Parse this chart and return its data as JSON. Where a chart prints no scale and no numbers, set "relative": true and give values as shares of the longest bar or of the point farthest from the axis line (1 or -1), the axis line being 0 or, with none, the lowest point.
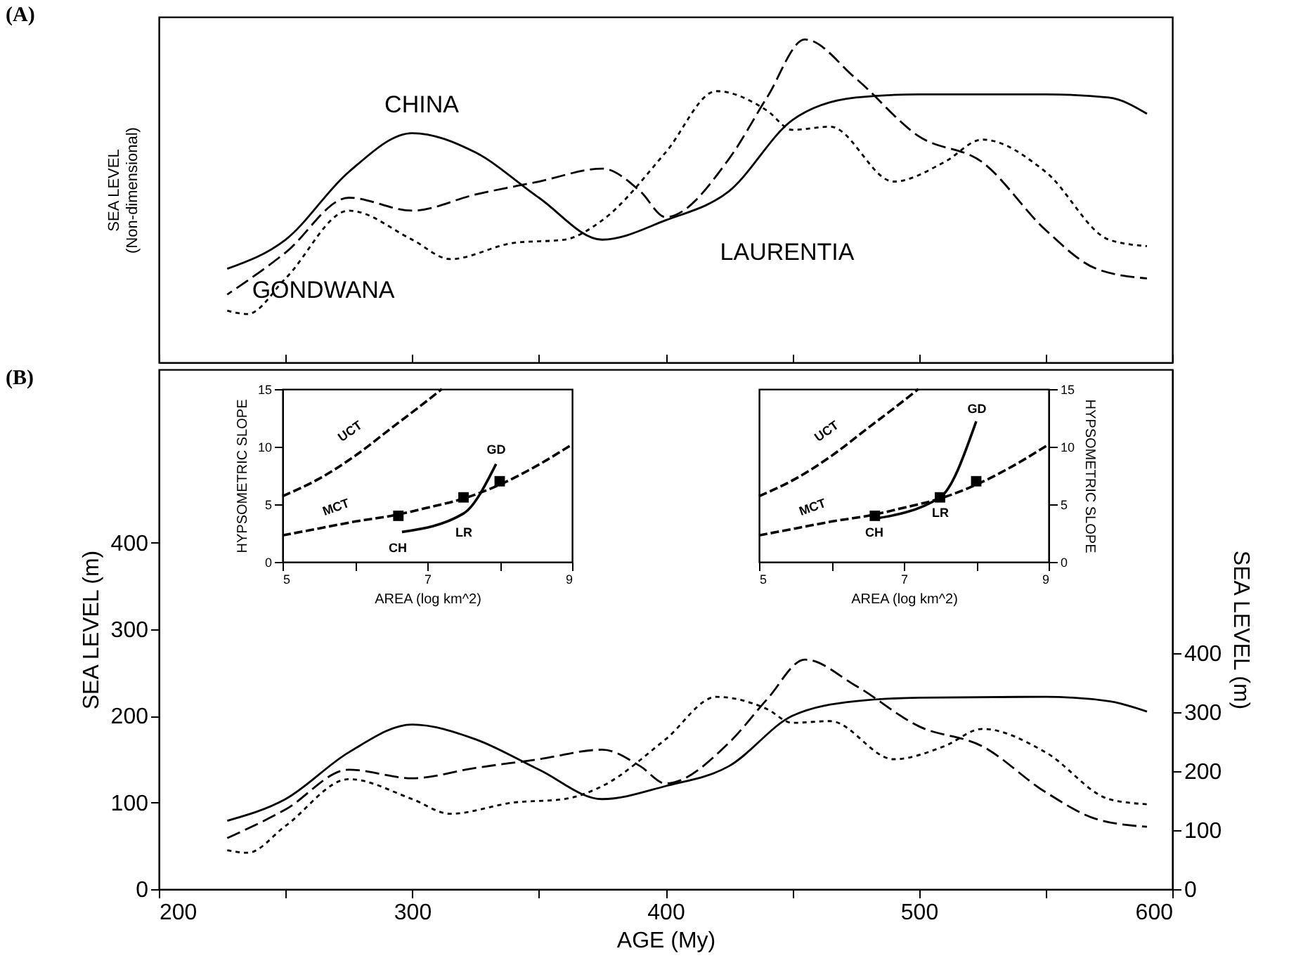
{
  "chart_data": [
    {
      "type": "line",
      "title": "(A)",
      "ylabel": "SEA LEVEL\n(Non-dimensional)",
      "relative": true,
      "xlim": [
        200,
        600
      ],
      "xticks": [
        200,
        {
          "value": 250,
          "label": null
        },
        300,
        {
          "value": 350,
          "label": null
        },
        400,
        {
          "value": 450,
          "label": null
        },
        500,
        {
          "value": 550,
          "label": null
        },
        600
      ],
      "tick_labels": false,
      "series": [
        {
          "color": "#000000",
          "line_style": "solid",
          "x": [
            227,
            250,
            275,
            300,
            325,
            350,
            375,
            400,
            425,
            450,
            475,
            500,
            550,
            575,
            590
          ],
          "values": [
            0.29,
            0.38,
            0.59,
            0.71,
            0.65,
            0.51,
            0.38,
            0.44,
            0.53,
            0.75,
            0.82,
            0.83,
            0.83,
            0.82,
            0.77
          ]
        },
        {
          "color": "#000000",
          "line_style": "dashed",
          "x": [
            227,
            250,
            275,
            300,
            325,
            350,
            375,
            390,
            400,
            425,
            440,
            455,
            475,
            500,
            525,
            550,
            570,
            590
          ],
          "values": [
            0.21,
            0.34,
            0.51,
            0.47,
            0.52,
            0.56,
            0.6,
            0.53,
            0.45,
            0.63,
            0.82,
            1,
            0.88,
            0.7,
            0.62,
            0.41,
            0.29,
            0.26
          ]
        },
        {
          "color": "#000000",
          "line_style": "dotted",
          "x": [
            227,
            235,
            250,
            275,
            300,
            315,
            340,
            360,
            375,
            400,
            420,
            440,
            450,
            465,
            490,
            510,
            525,
            550,
            575,
            590
          ],
          "values": [
            0.16,
            0.15,
            0.26,
            0.47,
            0.38,
            0.32,
            0.37,
            0.38,
            0.44,
            0.65,
            0.84,
            0.78,
            0.72,
            0.73,
            0.56,
            0.62,
            0.69,
            0.59,
            0.38,
            0.36
          ]
        }
      ],
      "annotations": [
        "CHINA",
        "GONDWANA",
        "LAURENTIA"
      ]
    },
    {
      "type": "line",
      "title": "(B)",
      "xlabel": "AGE (My)",
      "ylabel": "SEA LEVEL  (m)",
      "y2label": "SEA LEVEL (m)",
      "xlim": [
        200,
        600
      ],
      "xticks": [
        200,
        {
          "value": 250,
          "label": null
        },
        300,
        {
          "value": 350,
          "label": null
        },
        400,
        {
          "value": 450,
          "label": null
        },
        500,
        {
          "value": 550,
          "label": null
        },
        600
      ],
      "ylim": [
        0,
        600
      ],
      "yticks": [
        0,
        100,
        200,
        300,
        400
      ],
      "y2lim": [
        0,
        880
      ],
      "y2ticks": [
        0,
        100,
        200,
        300,
        400
      ],
      "series": [
        {
          "color": "#000000",
          "line_style": "solid",
          "x": [
            227,
            250,
            275,
            300,
            325,
            350,
            375,
            400,
            425,
            450,
            475,
            500,
            550,
            575,
            590
          ],
          "values": [
            79,
            104,
            158,
            190,
            173,
            138,
            104,
            119,
            142,
            200,
            217,
            221,
            222,
            217,
            205
          ]
        },
        {
          "color": "#000000",
          "line_style": "dashed",
          "x": [
            227,
            250,
            275,
            300,
            325,
            350,
            375,
            390,
            400,
            425,
            440,
            455,
            475,
            500,
            525,
            550,
            570,
            590
          ],
          "values": [
            59,
            92,
            138,
            128,
            140,
            150,
            161,
            142,
            122,
            169,
            219,
            265,
            235,
            188,
            165,
            112,
            81,
            72
          ]
        },
        {
          "color": "#000000",
          "line_style": "dotted",
          "x": [
            227,
            235,
            250,
            275,
            300,
            315,
            340,
            360,
            375,
            400,
            420,
            440,
            450,
            465,
            490,
            510,
            525,
            550,
            575,
            590
          ],
          "values": [
            45,
            42,
            73,
            127,
            104,
            87,
            100,
            104,
            119,
            173,
            222,
            208,
            192,
            194,
            150,
            165,
            185,
            158,
            104,
            98
          ]
        }
      ]
    },
    {
      "type": "line",
      "xlabel": "AREA  (log km^2)",
      "ylabel": "HYPSOMETRIC SLOPE",
      "xlim": [
        5,
        9
      ],
      "xticks": [
        5,
        {
          "value": 6,
          "label": null
        },
        7,
        {
          "value": 8,
          "label": null
        },
        9
      ],
      "ylim": [
        0,
        15
      ],
      "yticks": [
        0,
        5,
        10,
        15
      ],
      "series": [
        {
          "color": "#000000",
          "line_style": "dashed",
          "x": [
            5,
            5.5,
            6,
            6.5,
            7,
            7.2
          ],
          "values": [
            5.7,
            7.2,
            9.2,
            11.6,
            14.0,
            15
          ]
        },
        {
          "color": "#000000",
          "line_style": "dashed",
          "x": [
            5,
            5.5,
            6,
            6.5,
            7,
            7.5,
            8,
            8.5,
            9
          ],
          "values": [
            2.3,
            2.9,
            3.5,
            4.0,
            4.7,
            5.5,
            6.7,
            8.3,
            10.2
          ]
        },
        {
          "color": "#000000",
          "line_style": "solid",
          "x": [
            6.65,
            7.5,
            7.95
          ],
          "values": [
            2.6,
            4.2,
            8.5
          ]
        },
        {
          "type": "scatter",
          "color": "#000000",
          "marker": "square",
          "x": [
            6.6,
            7.5,
            8.0
          ],
          "values": [
            4.0,
            5.6,
            7.0
          ]
        }
      ],
      "annotations": [
        "UCT",
        "MCT",
        "CH",
        "LR",
        "GD"
      ]
    },
    {
      "type": "line",
      "xlabel": "AREA  (log km^2)",
      "y2label": "HYPSOMETRIC SLOPE",
      "xlim": [
        5,
        9
      ],
      "xticks": [
        5,
        {
          "value": 6,
          "label": null
        },
        7,
        {
          "value": 8,
          "label": null
        },
        9
      ],
      "y2lim": [
        0,
        15
      ],
      "y2ticks": [
        0,
        5,
        10,
        15
      ],
      "series": [
        {
          "color": "#000000",
          "line_style": "dashed",
          "axis": "y2",
          "x": [
            5,
            5.5,
            6,
            6.5,
            7,
            7.2
          ],
          "values": [
            5.7,
            7.2,
            9.2,
            11.6,
            14.0,
            15
          ]
        },
        {
          "color": "#000000",
          "line_style": "dashed",
          "axis": "y2",
          "x": [
            5,
            5.5,
            6,
            6.5,
            7,
            7.5,
            8,
            8.5,
            9
          ],
          "values": [
            2.3,
            2.9,
            3.5,
            4.0,
            4.7,
            5.5,
            6.7,
            8.3,
            10.2
          ]
        },
        {
          "color": "#000000",
          "line_style": "solid",
          "axis": "y2",
          "x": [
            6.55,
            7.5,
            8.0
          ],
          "values": [
            3.7,
            5.6,
            12.2
          ]
        },
        {
          "type": "scatter",
          "color": "#000000",
          "marker": "square",
          "axis": "y2",
          "x": [
            6.6,
            7.5,
            8.0
          ],
          "values": [
            4.0,
            5.6,
            7.0
          ]
        }
      ],
      "annotations": [
        "UCT",
        "MCT",
        "CH",
        "LR",
        "GD"
      ]
    }
  ]
}
